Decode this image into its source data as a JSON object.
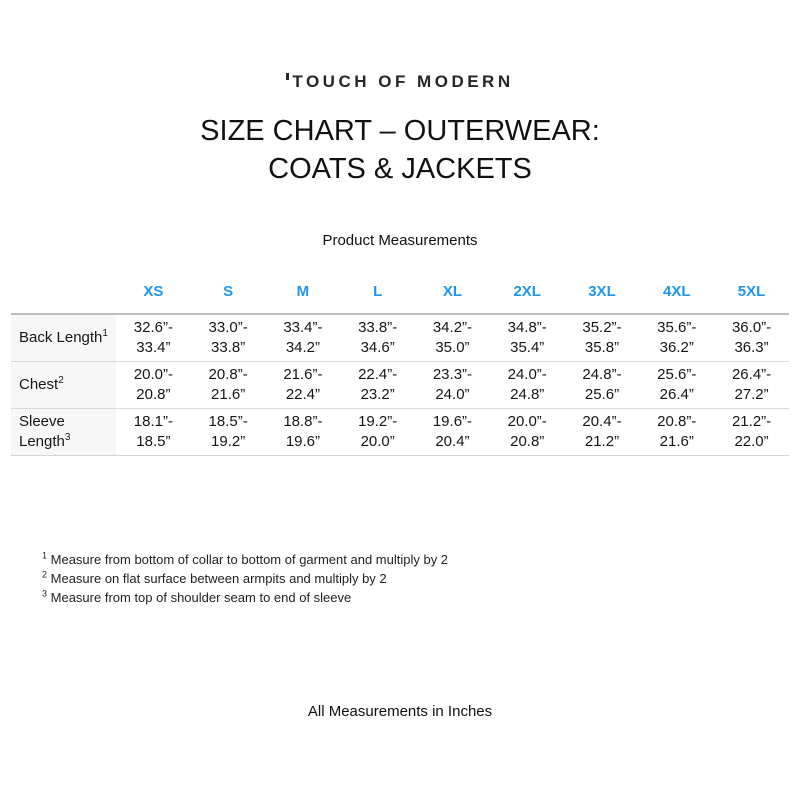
{
  "page": {
    "logo_text": "TOUCH OF MODERN",
    "title_line1": "SIZE CHART – OUTERWEAR:",
    "title_line2": "COATS & JACKETS",
    "subtitle": "Product Measurements",
    "footer": "All Measurements in Inches"
  },
  "table": {
    "accent_color": "#1e96f0",
    "columns": [
      "XS",
      "S",
      "M",
      "L",
      "XL",
      "2XL",
      "3XL",
      "4XL",
      "5XL"
    ],
    "rows": [
      {
        "label": "Back Length",
        "sup": "1",
        "cells": [
          "32.6”-\n33.4”",
          "33.0”-\n33.8”",
          "33.4”-\n34.2”",
          "33.8”-\n34.6”",
          "34.2”-\n35.0”",
          "34.8”-\n35.4”",
          "35.2”-\n35.8”",
          "35.6”-\n36.2”",
          "36.0”-\n36.3”"
        ]
      },
      {
        "label": "Chest",
        "sup": "2",
        "cells": [
          "20.0”-\n20.8”",
          "20.8”-\n21.6”",
          "21.6”-\n22.4”",
          "22.4”-\n23.2”",
          "23.3”-\n24.0”",
          "24.0”-\n24.8”",
          "24.8”-\n25.6”",
          "25.6”-\n26.4”",
          "26.4”-\n27.2”"
        ]
      },
      {
        "label": "Sleeve Length",
        "sup": "3",
        "cells": [
          "18.1”-\n18.5”",
          "18.5”-\n19.2”",
          "18.8”-\n19.6”",
          "19.2”-\n20.0”",
          "19.6”-\n20.4”",
          "20.0”-\n20.8”",
          "20.4”-\n21.2”",
          "20.8”-\n21.6”",
          "21.2”-\n22.0”"
        ]
      }
    ]
  },
  "footnotes": [
    {
      "sup": "1",
      "text": "Measure from bottom of collar to bottom of garment and multiply by 2"
    },
    {
      "sup": "2",
      "text": "Measure on flat surface between armpits and multiply by 2"
    },
    {
      "sup": "3",
      "text": "Measure from top of shoulder seam to end of sleeve"
    }
  ]
}
